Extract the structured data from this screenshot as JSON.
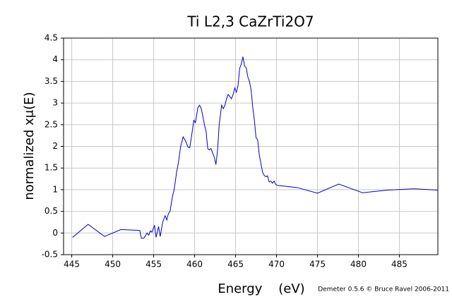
{
  "chart_data": {
    "type": "line",
    "title": "Ti L2,3 CaZrTi2O7",
    "x_label": "Energy    (eV)",
    "y_label": "normalized xμ(E)",
    "annotation": "Demeter 0.5.6 © Bruce Ravel 2006-2011",
    "color": "#0000cc",
    "grid": true,
    "xlim": [
      444,
      489.7
    ],
    "xticks": [
      445,
      450,
      455,
      460,
      465,
      470,
      475,
      480,
      485
    ],
    "ylim": [
      -0.5,
      4.5
    ],
    "yticks": [
      -0.5,
      0,
      0.5,
      1,
      1.5,
      2,
      2.5,
      3,
      3.5,
      4,
      4.5
    ],
    "x": [
      445.1,
      447,
      449,
      451,
      453.3,
      453.5,
      453.8,
      454.2,
      454.4,
      454.6,
      454.8,
      455.1,
      455.3,
      455.6,
      455.8,
      456.1,
      456.4,
      456.6,
      456.8,
      457,
      457.3,
      457.5,
      457.8,
      458,
      458.3,
      458.6,
      458.9,
      459.2,
      459.4,
      459.6,
      459.9,
      460.1,
      460.4,
      460.6,
      460.8,
      461,
      461.2,
      461.4,
      461.6,
      461.8,
      462,
      462.2,
      462.4,
      462.6,
      462.8,
      463,
      463.3,
      463.5,
      463.7,
      463.9,
      464.1,
      464.3,
      464.5,
      464.7,
      464.9,
      465.1,
      465.3,
      465.5,
      465.7,
      465.9,
      466.1,
      466.3,
      466.5,
      466.7,
      466.9,
      467.1,
      467.3,
      467.5,
      467.7,
      467.9,
      468.1,
      468.3,
      468.5,
      468.7,
      468.9,
      469.1,
      469.3,
      469.5,
      469.7,
      469.9,
      470.1,
      472.5,
      475,
      477.6,
      480.5,
      483.5,
      486.8,
      489.7
    ],
    "values": [
      -0.1,
      0.2,
      -0.08,
      0.08,
      0.06,
      -0.12,
      -0.12,
      0,
      -0.05,
      0.05,
      0.02,
      0.18,
      -0.1,
      0.15,
      -0.08,
      0.25,
      0.4,
      0.3,
      0.45,
      0.5,
      0.85,
      1.0,
      1.4,
      1.6,
      2.0,
      2.22,
      2.12,
      1.98,
      1.97,
      2.2,
      2.6,
      2.55,
      2.9,
      2.95,
      2.88,
      2.7,
      2.5,
      2.35,
      1.95,
      1.92,
      1.95,
      1.85,
      1.75,
      1.58,
      1.9,
      2.5,
      2.95,
      2.87,
      2.95,
      3.1,
      3.2,
      3.15,
      3.1,
      3.2,
      3.35,
      3.25,
      3.4,
      3.8,
      3.9,
      4.07,
      3.85,
      3.82,
      3.6,
      3.5,
      3.3,
      2.9,
      2.6,
      2.2,
      2.15,
      1.8,
      1.6,
      1.4,
      1.33,
      1.3,
      1.32,
      1.18,
      1.2,
      1.15,
      1.2,
      1.12,
      1.1,
      1.05,
      0.92,
      1.13,
      0.93,
      0.99,
      1.02,
      0.99
    ]
  }
}
